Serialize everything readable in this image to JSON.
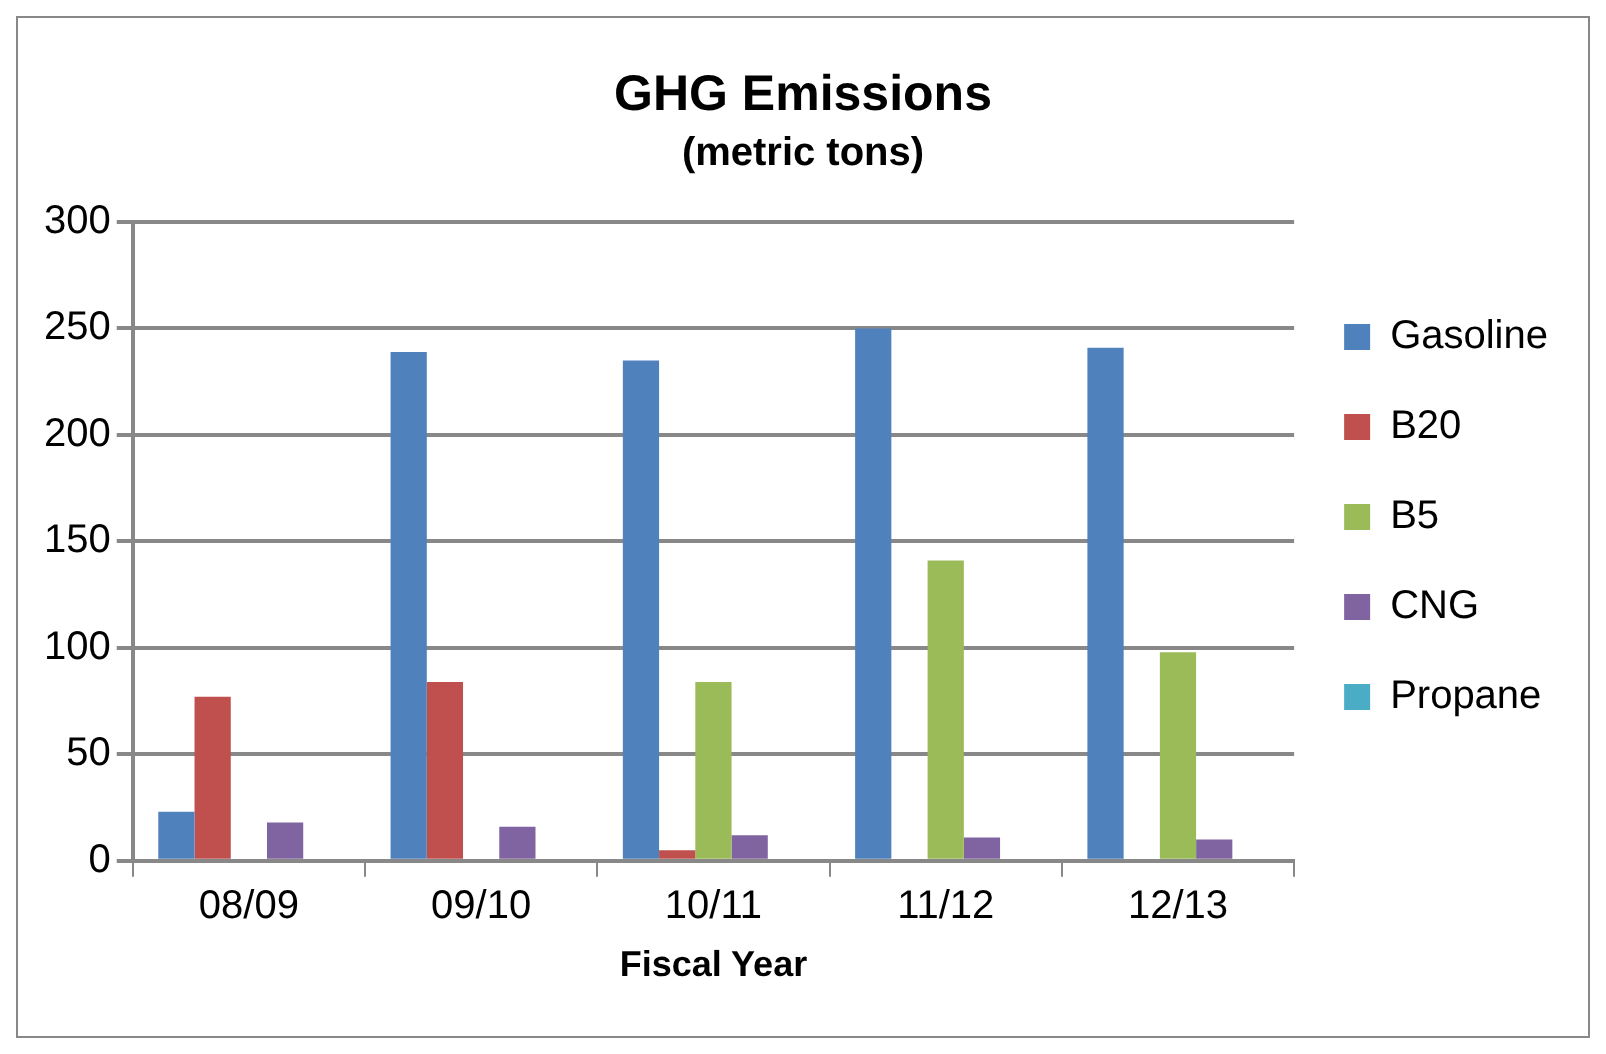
{
  "chart_data": {
    "type": "bar",
    "title": "GHG Emissions",
    "subtitle": "(metric tons)",
    "xlabel": "Fiscal Year",
    "categories": [
      "08/09",
      "09/10",
      "10/11",
      "11/12",
      "12/13"
    ],
    "series": [
      {
        "name": "Gasoline",
        "color": "#4f81bd",
        "values": [
          23,
          239,
          235,
          250,
          241
        ]
      },
      {
        "name": "B20",
        "color": "#c0504d",
        "values": [
          77,
          84,
          5,
          0,
          0
        ]
      },
      {
        "name": "B5",
        "color": "#9bbb59",
        "values": [
          0,
          0,
          84,
          141,
          98
        ]
      },
      {
        "name": "CNG",
        "color": "#8064a2",
        "values": [
          18,
          16,
          12,
          11,
          10
        ]
      },
      {
        "name": "Propane",
        "color": "#4bacc6",
        "values": [
          0,
          0,
          0,
          0,
          0
        ]
      }
    ],
    "ylim": [
      0,
      300
    ],
    "yticks": [
      0,
      50,
      100,
      150,
      200,
      250,
      300
    ],
    "grid": "y",
    "legend": "right"
  }
}
